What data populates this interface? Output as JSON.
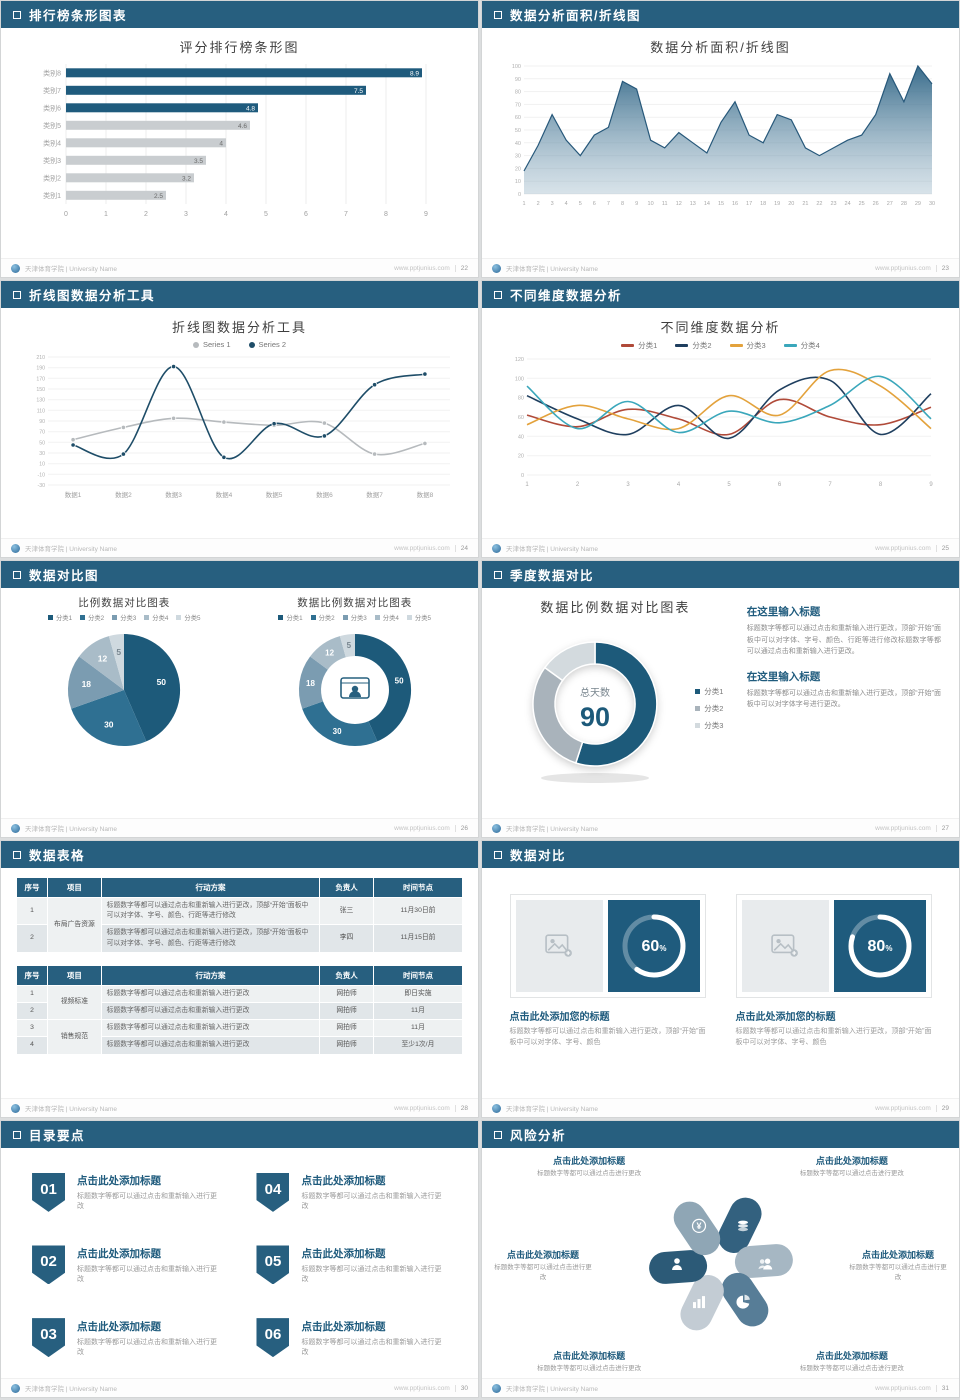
{
  "theme": {
    "primary": "#275f7f",
    "accent": "#1f5b7d"
  },
  "footer": {
    "university": "天津体育学院 | University Name",
    "site": "www.pptjunius.com"
  },
  "slides": {
    "s1": {
      "header": "排行榜条形图表",
      "page": "22",
      "chart": {
        "type": "hbar",
        "title": "评分排行榜条形图",
        "categories": [
          "类别1",
          "类别2",
          "类别3",
          "类别4",
          "类别5",
          "类别6",
          "类别7",
          "类别8"
        ],
        "values": [
          2.5,
          3.2,
          3.5,
          4,
          4.6,
          4.8,
          7.5,
          8.9
        ],
        "highlight_count": 3,
        "xmax": 9,
        "bar_color": "#1f5b7d",
        "muted_color": "#c9cdd0"
      }
    },
    "s2": {
      "header": "数据分析面积/折线图",
      "page": "23",
      "chart": {
        "type": "area",
        "title": "数据分析面积/折线图",
        "x": [
          1,
          2,
          3,
          4,
          5,
          6,
          7,
          8,
          9,
          10,
          11,
          12,
          13,
          14,
          15,
          16,
          17,
          18,
          19,
          20,
          21,
          22,
          23,
          24,
          25,
          26,
          27,
          28,
          29,
          30
        ],
        "values": [
          18,
          38,
          62,
          42,
          30,
          46,
          52,
          88,
          82,
          42,
          36,
          48,
          40,
          32,
          56,
          72,
          46,
          40,
          62,
          58,
          36,
          30,
          36,
          42,
          46,
          62,
          94,
          72,
          100,
          86
        ],
        "ymax": 100,
        "ystep": 10,
        "line_color": "#27587a",
        "fill_top": "#2e6485",
        "fill_bottom": "#9db8c9"
      }
    },
    "s3": {
      "header": "折线图数据分析工具",
      "page": "24",
      "chart": {
        "type": "line",
        "title": "折线图数据分析工具",
        "categories": [
          "数据1",
          "数据2",
          "数据3",
          "数据4",
          "数据5",
          "数据6",
          "数据7",
          "数据8"
        ],
        "ymin": -30,
        "ymax": 210,
        "ystep": 20,
        "series": [
          {
            "name": "Series 1",
            "color": "#b6babd",
            "values": [
              55,
              78,
              95,
              88,
              82,
              86,
              28,
              48
            ]
          },
          {
            "name": "Series 2",
            "color": "#1e4d68",
            "values": [
              45,
              28,
              192,
              22,
              85,
              62,
              158,
              178
            ]
          }
        ]
      }
    },
    "s4": {
      "header": "不同维度数据分析",
      "page": "25",
      "chart": {
        "type": "multiline",
        "title": "不同维度数据分析",
        "x": [
          1,
          2,
          3,
          4,
          5,
          6,
          7,
          8,
          9
        ],
        "ymin": 0,
        "ymax": 120,
        "ystep": 20,
        "series": [
          {
            "name": "分类1",
            "color": "#b04a39",
            "values": [
              62,
              50,
              68,
              58,
              42,
              78,
              60,
              52,
              70
            ]
          },
          {
            "name": "分类2",
            "color": "#1f3f5f",
            "values": [
              82,
              58,
              42,
              72,
              38,
              88,
              98,
              42,
              84
            ]
          },
          {
            "name": "分类3",
            "color": "#e3a23c",
            "values": [
              52,
              72,
              58,
              48,
              82,
              62,
              108,
              92,
              48
            ]
          },
          {
            "name": "分类4",
            "color": "#3aa7bb",
            "values": [
              92,
              48,
              76,
              44,
              66,
              54,
              72,
              102,
              58
            ]
          }
        ]
      }
    },
    "s5": {
      "header": "数据对比图",
      "page": "26",
      "pie": {
        "type": "pie",
        "title": "比例数据对比图表",
        "legend": [
          "分类1",
          "分类2",
          "分类3",
          "分类4",
          "分类5"
        ],
        "values": [
          50,
          30,
          18,
          12,
          5
        ],
        "colors": [
          "#1d5a7a",
          "#2f7092",
          "#7b9cb1",
          "#a9bcc8",
          "#cfd9df"
        ]
      },
      "donut": {
        "type": "donut",
        "title": "数据比例数据对比图表",
        "legend": [
          "分类1",
          "分类2",
          "分类3",
          "分类4",
          "分类5"
        ],
        "values": [
          50,
          30,
          18,
          12,
          5
        ],
        "colors": [
          "#1d5a7a",
          "#2f7092",
          "#7b9cb1",
          "#a9bcc8",
          "#cfd9df"
        ],
        "icon": "person-monitor-icon"
      }
    },
    "s6": {
      "header": "季度数据对比",
      "page": "27",
      "title": "数据比例数据对比图表",
      "donut": {
        "type": "bigdonut",
        "values": [
          55,
          30,
          15
        ],
        "colors": [
          "#1d5a7a",
          "#a9b3bb",
          "#d3dade"
        ],
        "center_label": "总天数",
        "center_value": "90"
      },
      "legend": [
        "分类1",
        "分类2",
        "分类3"
      ],
      "blocks": [
        {
          "title": "在这里输入标题",
          "body": "标题数字等都可以通过点击和重新输入进行更改，顶部“开始”面板中可以对字体、字号、颜色、行距等进行修改标题数字等都可以通过点击和重新输入进行更改。"
        },
        {
          "title": "在这里输入标题",
          "body": "标题数字等都可以通过点击和重新输入进行更改，顶部“开始”面板中可以对字体字号进行更改。"
        }
      ]
    },
    "s7": {
      "header": "数据表格",
      "page": "28",
      "table1": {
        "columns": [
          "序号",
          "项目",
          "行动方案",
          "负责人",
          "时间节点"
        ],
        "rows": [
          {
            "no": "1",
            "project": "布局广告资源",
            "plan": "标题数字等都可以通过点击和重新输入进行更改，顶部“开始”面板中可以对字体、字号、颜色、行距等进行修改",
            "owner": "张三",
            "time": "11月30日前"
          },
          {
            "no": "2",
            "plan": "标题数字等都可以通过点击和重新输入进行更改，顶部“开始”面板中可以对字体、字号、颜色、行距等进行修改",
            "owner": "李四",
            "time": "11月15日前"
          }
        ]
      },
      "table2": {
        "columns": [
          "序号",
          "项目",
          "行动方案",
          "负责人",
          "时间节点"
        ],
        "rows": [
          {
            "no": "1",
            "project": "视频标准",
            "plan": "标题数字等都可以通过点击和重新输入进行更改",
            "owner": "网拍师",
            "time": "即日实施"
          },
          {
            "no": "2",
            "plan": "标题数字等都可以通过点击和重新输入进行更改",
            "owner": "网拍师",
            "time": "11月"
          },
          {
            "no": "3",
            "project": "销售规范",
            "plan": "标题数字等都可以通过点击和重新输入进行更改",
            "owner": "网拍师",
            "time": "11月"
          },
          {
            "no": "4",
            "plan": "标题数字等都可以通过点击和重新输入进行更改",
            "owner": "网拍师",
            "time": "至少1次/月"
          }
        ]
      }
    },
    "s8": {
      "header": "数据对比",
      "page": "29",
      "cards": [
        {
          "type": "ring",
          "percent": 60,
          "title": "点击此处添加您的标题",
          "body": "标题数字等都可以通过点击和重新输入进行更改，顶部“开始”面板中可以对字体、字号、颜色"
        },
        {
          "type": "ring",
          "percent": 80,
          "title": "点击此处添加您的标题",
          "body": "标题数字等都可以通过点击和重新输入进行更改，顶部“开始”面板中可以对字体、字号、颜色"
        }
      ]
    },
    "s9": {
      "header": "目录要点",
      "page": "30",
      "items": [
        {
          "num": "01",
          "title": "点击此处添加标题",
          "body": "标题数字等都可以通过点击和重新输入进行更改"
        },
        {
          "num": "02",
          "title": "点击此处添加标题",
          "body": "标题数字等都可以通过点击和重新输入进行更改"
        },
        {
          "num": "03",
          "title": "点击此处添加标题",
          "body": "标题数字等都可以通过点击和重新输入进行更改"
        },
        {
          "num": "04",
          "title": "点击此处添加标题",
          "body": "标题数字等都可以通过点击和重新输入进行更改"
        },
        {
          "num": "05",
          "title": "点击此处添加标题",
          "body": "标题数字等都可以通过点击和重新输入进行更改"
        },
        {
          "num": "06",
          "title": "点击此处添加标题",
          "body": "标题数字等都可以通过点击和重新输入进行更改"
        }
      ]
    },
    "s10": {
      "header": "风险分析",
      "page": "31",
      "pinwheel": {
        "type": "pinwheel",
        "petal_colors": [
          "#33617f",
          "#a6b7c3",
          "#577d97",
          "#c3ccd4",
          "#2c5a77",
          "#8fa6b5"
        ],
        "icons": [
          "moneybag-icon",
          "coins-icon",
          "people-icon",
          "piechart-icon",
          "barchart-icon",
          "person-icon"
        ]
      },
      "labels": [
        {
          "title": "点击此处添加标题",
          "body": "标题数字等都可以通过点击进行更改"
        },
        {
          "title": "点击此处添加标题",
          "body": "标题数字等都可以通过点击进行更改"
        },
        {
          "title": "点击此处添加标题",
          "body": "标题数字等都可以通过点击进行更改"
        },
        {
          "title": "点击此处添加标题",
          "body": "标题数字等都可以通过点击进行更改"
        },
        {
          "title": "点击此处添加标题",
          "body": "标题数字等都可以通过点击进行更改"
        },
        {
          "title": "点击此处添加标题",
          "body": "标题数字等都可以通过点击进行更改"
        }
      ]
    }
  }
}
